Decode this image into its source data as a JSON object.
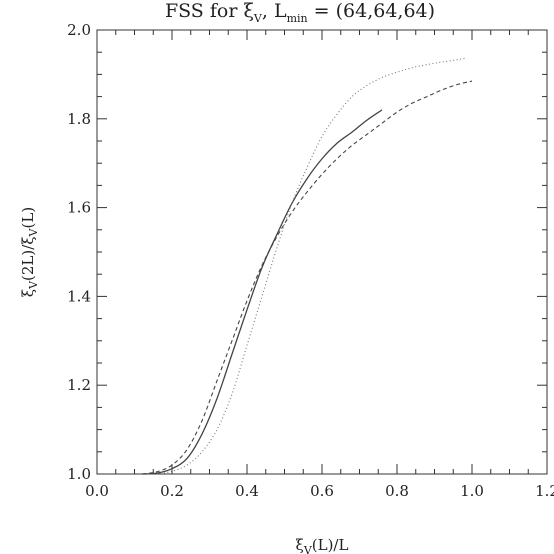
{
  "chart_data": {
    "type": "line",
    "title_parts": {
      "prefix": "FSS for ",
      "xi": "ξ",
      "xi_sub": "V",
      "mid": ", L",
      "l_sub": "min",
      "suffix": " = (64,64,64)"
    },
    "xlabel_parts": {
      "xi": "ξ",
      "sub": "V",
      "rest": "(L)/L"
    },
    "ylabel_parts": {
      "xi1": "ξ",
      "sub1": "V",
      "mid": "(2L)/",
      "xi2": "ξ",
      "sub2": "V",
      "end": "(L)"
    },
    "xlim": [
      0.0,
      1.2
    ],
    "ylim": [
      1.0,
      2.0
    ],
    "xticks": [
      "0.0",
      "0.2",
      "0.4",
      "0.6",
      "0.8",
      "1.0",
      "1.2"
    ],
    "yticks": [
      "1.0",
      "1.2",
      "1.4",
      "1.6",
      "1.8",
      "2.0"
    ],
    "xtick_values": [
      0.0,
      0.2,
      0.4,
      0.6,
      0.8,
      1.0,
      1.2
    ],
    "ytick_values": [
      1.0,
      1.2,
      1.4,
      1.6,
      1.8,
      2.0
    ],
    "series": [
      {
        "style": "solid",
        "x": [
          0.12,
          0.16,
          0.2,
          0.24,
          0.28,
          0.32,
          0.36,
          0.4,
          0.44,
          0.48,
          0.52,
          0.56,
          0.6,
          0.64,
          0.68,
          0.72,
          0.76
        ],
        "y": [
          1.0,
          1.002,
          1.012,
          1.035,
          1.09,
          1.17,
          1.27,
          1.37,
          1.465,
          1.54,
          1.61,
          1.665,
          1.71,
          1.745,
          1.77,
          1.797,
          1.82
        ]
      },
      {
        "style": "dashed",
        "x": [
          0.12,
          0.16,
          0.2,
          0.24,
          0.28,
          0.32,
          0.36,
          0.4,
          0.44,
          0.48,
          0.52,
          0.56,
          0.6,
          0.64,
          0.68,
          0.72,
          0.76,
          0.8,
          0.84,
          0.88,
          0.92,
          0.96,
          1.0
        ],
        "y": [
          1.0,
          1.005,
          1.02,
          1.055,
          1.12,
          1.21,
          1.3,
          1.39,
          1.47,
          1.535,
          1.59,
          1.635,
          1.675,
          1.71,
          1.74,
          1.765,
          1.79,
          1.815,
          1.835,
          1.85,
          1.865,
          1.877,
          1.885
        ]
      },
      {
        "style": "dotted",
        "x": [
          0.16,
          0.2,
          0.24,
          0.28,
          0.32,
          0.36,
          0.4,
          0.44,
          0.48,
          0.52,
          0.56,
          0.6,
          0.64,
          0.68,
          0.72,
          0.76,
          0.8,
          0.84,
          0.88,
          0.92,
          0.96,
          0.98
        ],
        "y": [
          1.0,
          1.006,
          1.02,
          1.05,
          1.1,
          1.18,
          1.29,
          1.4,
          1.51,
          1.61,
          1.69,
          1.76,
          1.81,
          1.85,
          1.875,
          1.893,
          1.905,
          1.915,
          1.922,
          1.928,
          1.933,
          1.936
        ]
      }
    ]
  }
}
